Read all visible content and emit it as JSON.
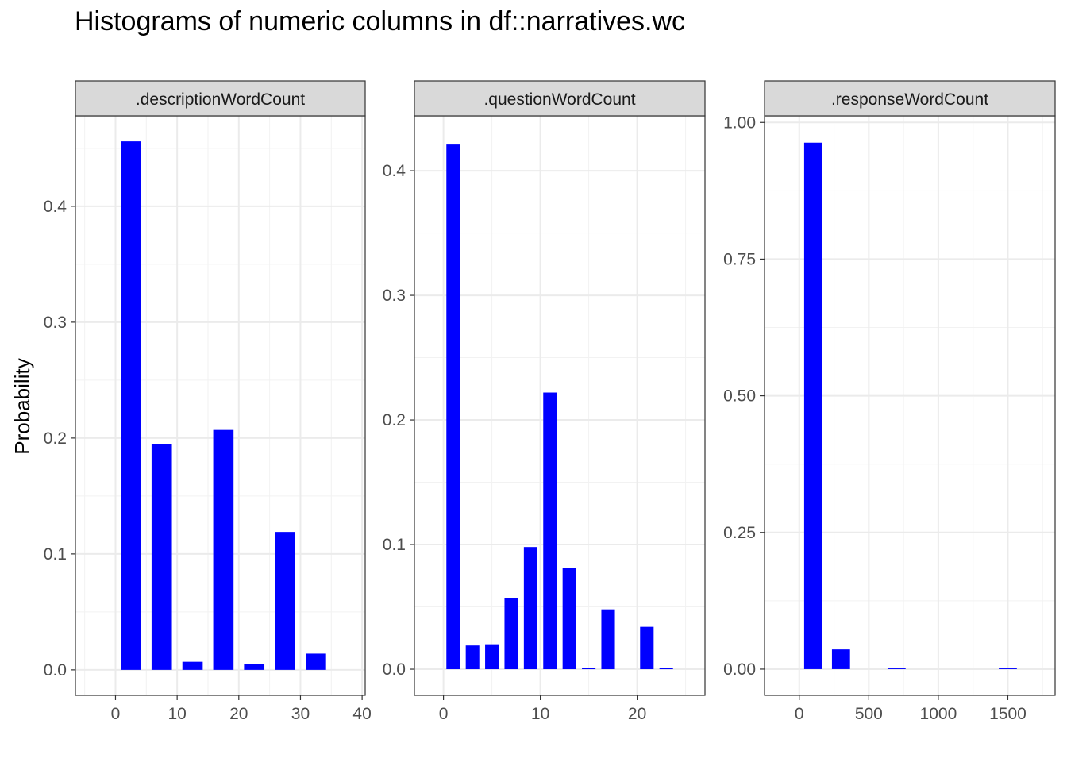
{
  "chart_data": {
    "type": "bar",
    "title": "Histograms of numeric columns in df::narratives.wc",
    "ylabel": "Probability",
    "bar_color": "#0000ff",
    "grid": true,
    "panels": [
      {
        "strip": ".descriptionWordCount",
        "xlim": [
          -6.5,
          40.5
        ],
        "ylim": [
          -0.022,
          0.478
        ],
        "x_ticks": [
          0,
          10,
          20,
          30,
          40
        ],
        "y_ticks": [
          0.0,
          0.1,
          0.2,
          0.3,
          0.4
        ],
        "y_tick_labels": [
          "0.0",
          "0.1",
          "0.2",
          "0.3",
          "0.4"
        ],
        "bin_width": 5,
        "bar_width": 3.3,
        "x": [
          2.5,
          7.5,
          12.5,
          17.5,
          22.5,
          27.5,
          32.5
        ],
        "values": [
          0.456,
          0.195,
          0.007,
          0.207,
          0.005,
          0.119,
          0.014
        ]
      },
      {
        "strip": ".questionWordCount",
        "xlim": [
          -3,
          27
        ],
        "ylim": [
          -0.021,
          0.444
        ],
        "x_ticks": [
          0,
          10,
          20
        ],
        "y_ticks": [
          0.0,
          0.1,
          0.2,
          0.3,
          0.4
        ],
        "y_tick_labels": [
          "0.0",
          "0.1",
          "0.2",
          "0.3",
          "0.4"
        ],
        "bin_width": 2,
        "bar_width": 1.4,
        "x": [
          1,
          3,
          5,
          7,
          9,
          11,
          13,
          15,
          17,
          21,
          23
        ],
        "values": [
          0.421,
          0.019,
          0.02,
          0.057,
          0.098,
          0.222,
          0.081,
          0.001,
          0.048,
          0.034,
          0.001
        ]
      },
      {
        "strip": ".responseWordCount",
        "xlim": [
          -250,
          1840
        ],
        "ylim": [
          -0.048,
          1.012
        ],
        "x_ticks": [
          0,
          500,
          1000,
          1500
        ],
        "y_ticks": [
          0.0,
          0.25,
          0.5,
          0.75,
          1.0
        ],
        "y_tick_labels": [
          "0.00",
          "0.25",
          "0.50",
          "0.75",
          "1.00"
        ],
        "bin_width": 200,
        "bar_width": 130,
        "x": [
          100,
          300,
          700,
          1500
        ],
        "values": [
          0.963,
          0.036,
          0.001,
          0.001
        ]
      }
    ]
  }
}
